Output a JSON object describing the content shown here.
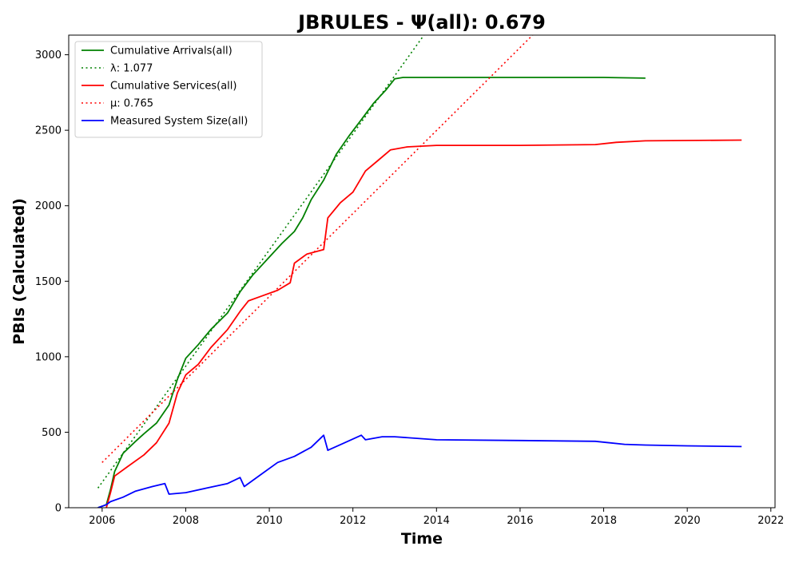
{
  "chart_data": {
    "type": "line",
    "title": "JBRULES -  Ψ(all): 0.679",
    "xlabel": "Time",
    "ylabel": "PBIs (Calculated)",
    "xlim": [
      2005.2,
      2022.1
    ],
    "ylim": [
      0,
      3130
    ],
    "x_ticks": [
      2006,
      2008,
      2010,
      2012,
      2014,
      2016,
      2018,
      2020,
      2022
    ],
    "y_ticks": [
      0,
      500,
      1000,
      1500,
      2000,
      2500,
      3000
    ],
    "grid": false,
    "legend_position": "upper-left",
    "series": [
      {
        "name": "Cumulative Arrivals(all)",
        "color": "#008000",
        "style": "solid",
        "points": [
          [
            2005.9,
            0
          ],
          [
            2006.1,
            20
          ],
          [
            2006.2,
            120
          ],
          [
            2006.3,
            240
          ],
          [
            2006.4,
            300
          ],
          [
            2006.5,
            360
          ],
          [
            2006.8,
            440
          ],
          [
            2007.0,
            490
          ],
          [
            2007.3,
            560
          ],
          [
            2007.6,
            680
          ],
          [
            2007.8,
            850
          ],
          [
            2008.0,
            990
          ],
          [
            2008.3,
            1080
          ],
          [
            2008.6,
            1180
          ],
          [
            2009.0,
            1290
          ],
          [
            2009.3,
            1430
          ],
          [
            2009.6,
            1540
          ],
          [
            2010.0,
            1660
          ],
          [
            2010.3,
            1750
          ],
          [
            2010.6,
            1830
          ],
          [
            2010.8,
            1920
          ],
          [
            2011.0,
            2040
          ],
          [
            2011.3,
            2170
          ],
          [
            2011.6,
            2340
          ],
          [
            2011.9,
            2460
          ],
          [
            2012.2,
            2570
          ],
          [
            2012.5,
            2680
          ],
          [
            2012.8,
            2770
          ],
          [
            2013.0,
            2840
          ],
          [
            2013.2,
            2850
          ],
          [
            2014.0,
            2850
          ],
          [
            2016.0,
            2850
          ],
          [
            2018.0,
            2850
          ],
          [
            2019.0,
            2845
          ]
        ]
      },
      {
        "name": "λ: 1.077",
        "color": "#008000",
        "style": "dotted",
        "points": [
          [
            2005.9,
            130
          ],
          [
            2013.7,
            3130
          ]
        ]
      },
      {
        "name": "Cumulative Services(all)",
        "color": "#ff0000",
        "style": "solid",
        "points": [
          [
            2006.1,
            0
          ],
          [
            2006.2,
            100
          ],
          [
            2006.3,
            210
          ],
          [
            2006.6,
            270
          ],
          [
            2007.0,
            350
          ],
          [
            2007.3,
            430
          ],
          [
            2007.6,
            560
          ],
          [
            2007.8,
            760
          ],
          [
            2008.0,
            880
          ],
          [
            2008.3,
            950
          ],
          [
            2008.6,
            1060
          ],
          [
            2009.0,
            1180
          ],
          [
            2009.3,
            1300
          ],
          [
            2009.5,
            1370
          ],
          [
            2009.8,
            1400
          ],
          [
            2010.2,
            1440
          ],
          [
            2010.5,
            1490
          ],
          [
            2010.6,
            1620
          ],
          [
            2010.9,
            1680
          ],
          [
            2011.3,
            1710
          ],
          [
            2011.4,
            1920
          ],
          [
            2011.7,
            2020
          ],
          [
            2012.0,
            2090
          ],
          [
            2012.3,
            2230
          ],
          [
            2012.6,
            2300
          ],
          [
            2012.9,
            2370
          ],
          [
            2013.3,
            2390
          ],
          [
            2014.0,
            2400
          ],
          [
            2016.0,
            2400
          ],
          [
            2017.8,
            2405
          ],
          [
            2018.3,
            2420
          ],
          [
            2019.0,
            2430
          ],
          [
            2021.3,
            2435
          ]
        ]
      },
      {
        "name": "μ: 0.765",
        "color": "#ff0000",
        "style": "dotted",
        "points": [
          [
            2006.0,
            300
          ],
          [
            2016.3,
            3130
          ]
        ]
      },
      {
        "name": "Measured System Size(all)",
        "color": "#0000ff",
        "style": "solid",
        "points": [
          [
            2005.9,
            0
          ],
          [
            2006.1,
            20
          ],
          [
            2006.2,
            40
          ],
          [
            2006.5,
            70
          ],
          [
            2006.8,
            110
          ],
          [
            2007.2,
            140
          ],
          [
            2007.5,
            160
          ],
          [
            2007.6,
            90
          ],
          [
            2008.0,
            100
          ],
          [
            2008.5,
            130
          ],
          [
            2009.0,
            160
          ],
          [
            2009.3,
            200
          ],
          [
            2009.4,
            140
          ],
          [
            2009.8,
            220
          ],
          [
            2010.2,
            300
          ],
          [
            2010.6,
            340
          ],
          [
            2011.0,
            400
          ],
          [
            2011.3,
            480
          ],
          [
            2011.4,
            380
          ],
          [
            2011.8,
            430
          ],
          [
            2012.2,
            480
          ],
          [
            2012.3,
            450
          ],
          [
            2012.7,
            470
          ],
          [
            2013.0,
            470
          ],
          [
            2014.0,
            450
          ],
          [
            2016.0,
            445
          ],
          [
            2017.8,
            440
          ],
          [
            2018.5,
            420
          ],
          [
            2019.0,
            415
          ],
          [
            2020.0,
            410
          ],
          [
            2021.3,
            405
          ]
        ]
      }
    ]
  }
}
